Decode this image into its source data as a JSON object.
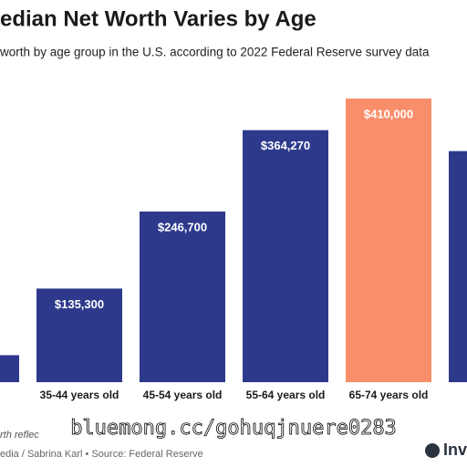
{
  "chart_data": {
    "type": "bar",
    "title": "edian Net Worth Varies by Age",
    "subtitle": "worth by age group in the U.S. according to 2022 Federal Reserve survey data",
    "categories": [
      null,
      "35-44 years old",
      "45-54 years old",
      "55-64 years old",
      "65-74 years old",
      null
    ],
    "values": [
      39000,
      135300,
      246700,
      364270,
      410000,
      334000
    ],
    "value_labels": [
      null,
      "$135,300",
      "$246,700",
      "$364,270",
      "$410,000",
      null
    ],
    "colors": [
      "#2d3a8c",
      "#2d3a8c",
      "#2d3a8c",
      "#2d3a8c",
      "#f98e6b",
      "#2d3a8c"
    ],
    "ylim": [
      0,
      410000
    ],
    "note": "rth reflec",
    "source": "edia / Sabrina Karl • Source: Federal Reserve",
    "logo": "Inve",
    "watermark": "bluemong.cc/gohuqjnuere0283"
  }
}
